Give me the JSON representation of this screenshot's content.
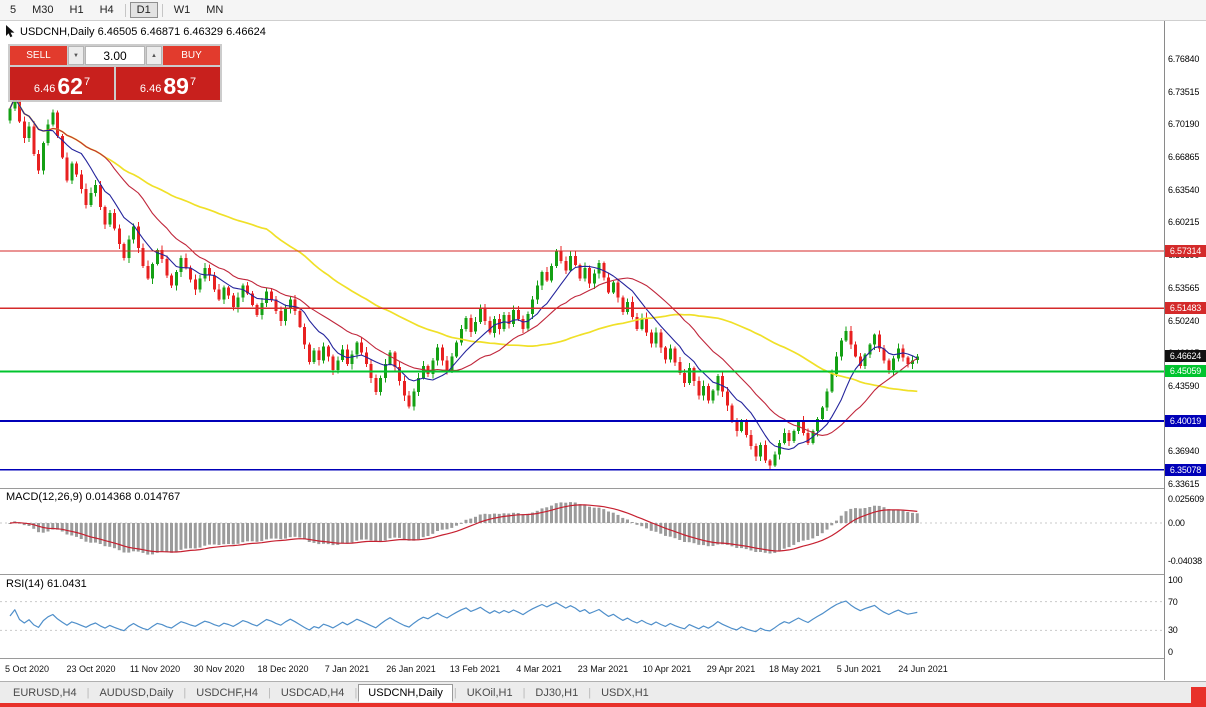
{
  "colors": {
    "up": "#14a014",
    "down": "#e82020",
    "ma_fast": "#24249c",
    "ma_mid": "#c0273c",
    "ma_slow": "#f0e028",
    "macd_hist": "#9b9b9b",
    "macd_signal": "#c62030",
    "rsi_line": "#4f8fca",
    "level_red": "#d42a2a",
    "level_green": "#00c42e",
    "level_blue": "#0000b8",
    "current_badge": "#111111"
  },
  "toolbar": {
    "timeframes": [
      {
        "label": "5",
        "active": false
      },
      {
        "label": "M30",
        "active": false
      },
      {
        "label": "H1",
        "active": false
      },
      {
        "label": "H4",
        "active": false
      },
      {
        "label": "D1",
        "active": true
      },
      {
        "label": "W1",
        "active": false
      },
      {
        "label": "MN",
        "active": false
      }
    ]
  },
  "chart_header": {
    "symbol_info": "USDCNH,Daily 6.46505 6.46871 6.46329 6.46624"
  },
  "trade_panel": {
    "sell_label": "SELL",
    "buy_label": "BUY",
    "volume": "3.00",
    "spin_down": "▼",
    "spin_up": "▲",
    "sell_price": {
      "prefix": "6.46",
      "big": "62",
      "sup": "7"
    },
    "buy_price": {
      "prefix": "6.46",
      "big": "89",
      "sup": "7"
    }
  },
  "levels": [
    {
      "value": "6.57314",
      "price": 6.57314,
      "color": "red"
    },
    {
      "value": "6.51483",
      "price": 6.51483,
      "color": "red"
    },
    {
      "value": "6.45059",
      "price": 6.45059,
      "color": "green"
    },
    {
      "value": "6.40019",
      "price": 6.40019,
      "color": "blue"
    },
    {
      "value": "6.35078",
      "price": 6.35078,
      "color": "blue"
    }
  ],
  "current_price": {
    "value": "6.46624",
    "price": 6.46624
  },
  "price_axis": {
    "ticks": [
      "6.76840",
      "6.73515",
      "6.70190",
      "6.66865",
      "6.63540",
      "6.60215",
      "6.56890",
      "6.53565",
      "6.50240",
      "6.46915",
      "6.43590",
      "6.40265",
      "6.36940",
      "6.33615"
    ]
  },
  "macd_panel": {
    "label": "MACD(12,26,9) 0.014368 0.014767",
    "axis": [
      "0.025609",
      "0.00",
      "-0.04038"
    ]
  },
  "rsi_panel": {
    "label": "RSI(14) 61.0431",
    "axis": [
      "100",
      "70",
      "30",
      "0"
    ]
  },
  "time_axis": {
    "labels": [
      "5 Oct 2020",
      "23 Oct 2020",
      "11 Nov 2020",
      "30 Nov 2020",
      "18 Dec 2020",
      "7 Jan 2021",
      "26 Jan 2021",
      "13 Feb 2021",
      "4 Mar 2021",
      "23 Mar 2021",
      "10 Apr 2021",
      "29 Apr 2021",
      "18 May 2021",
      "5 Jun 2021",
      "24 Jun 2021"
    ]
  },
  "tabs": {
    "separator": "|",
    "items": [
      {
        "label": "EURUSD,H4",
        "active": false
      },
      {
        "label": "AUDUSD,Daily",
        "active": false
      },
      {
        "label": "USDCHF,H4",
        "active": false
      },
      {
        "label": "USDCAD,H4",
        "active": false
      },
      {
        "label": "USDCNH,Daily",
        "active": true
      },
      {
        "label": "UKOil,H1",
        "active": false
      },
      {
        "label": "DJ30,H1",
        "active": false
      },
      {
        "label": "USDX,H1",
        "active": false
      }
    ]
  },
  "chart_data": {
    "type": "candlestick",
    "symbol": "USDCNH",
    "timeframe": "Daily",
    "ohlc_display": {
      "open": "6.46505",
      "high": "6.46871",
      "low": "6.46329",
      "close": "6.46624"
    },
    "x_labels": [
      "5 Oct 2020",
      "23 Oct 2020",
      "11 Nov 2020",
      "30 Nov 2020",
      "18 Dec 2020",
      "7 Jan 2021",
      "26 Jan 2021",
      "13 Feb 2021",
      "4 Mar 2021",
      "23 Mar 2021",
      "10 Apr 2021",
      "29 Apr 2021",
      "18 May 2021",
      "5 Jun 2021",
      "24 Jun 2021"
    ],
    "y_range": [
      6.33615,
      6.7684
    ],
    "horizontal_levels": [
      6.57314,
      6.51483,
      6.45059,
      6.40019,
      6.35078
    ],
    "moving_averages": [
      {
        "name": "fast",
        "period": 9
      },
      {
        "name": "medium",
        "period": 21
      },
      {
        "name": "slow",
        "period": 55
      }
    ],
    "indicators": [
      {
        "name": "MACD",
        "params": "12,26,9",
        "values": [
          0.014368,
          0.014767
        ],
        "y_axis": [
          0.025609,
          0.0,
          -0.04038
        ]
      },
      {
        "name": "RSI",
        "params": "14",
        "value": 61.0431,
        "y_axis": [
          0,
          30,
          70,
          100
        ]
      }
    ],
    "closes": [
      6.718,
      6.74,
      6.705,
      6.688,
      6.7,
      6.672,
      6.655,
      6.683,
      6.702,
      6.714,
      6.69,
      6.668,
      6.645,
      6.662,
      6.651,
      6.636,
      6.62,
      6.632,
      6.64,
      6.618,
      6.6,
      6.612,
      6.596,
      6.58,
      6.566,
      6.585,
      6.598,
      6.576,
      6.558,
      6.545,
      6.56,
      6.574,
      6.565,
      6.548,
      6.538,
      6.552,
      6.566,
      6.556,
      6.544,
      6.534,
      6.545,
      6.556,
      6.548,
      6.534,
      6.524,
      6.536,
      6.528,
      6.516,
      6.526,
      6.538,
      6.53,
      6.518,
      6.508,
      6.52,
      6.532,
      6.524,
      6.512,
      6.502,
      6.514,
      6.524,
      6.512,
      6.496,
      6.478,
      6.46,
      6.472,
      6.462,
      6.476,
      6.466,
      6.452,
      6.462,
      6.473,
      6.458,
      6.468,
      6.48,
      6.47,
      6.458,
      6.444,
      6.43,
      6.444,
      6.458,
      6.47,
      6.455,
      6.441,
      6.426,
      6.415,
      6.43,
      6.444,
      6.456,
      6.448,
      6.462,
      6.475,
      6.462,
      6.452,
      6.466,
      6.48,
      6.494,
      6.505,
      6.491,
      6.501,
      6.515,
      6.502,
      6.49,
      6.504,
      6.494,
      6.508,
      6.499,
      6.513,
      6.504,
      6.494,
      6.509,
      6.524,
      6.538,
      6.552,
      6.543,
      6.558,
      6.573,
      6.563,
      6.553,
      6.568,
      6.559,
      6.545,
      6.556,
      6.54,
      6.55,
      6.561,
      6.546,
      6.531,
      6.541,
      6.526,
      6.511,
      6.521,
      6.506,
      6.494,
      6.505,
      6.49,
      6.479,
      6.49,
      6.475,
      6.463,
      6.474,
      6.46,
      6.449,
      6.439,
      6.454,
      6.441,
      6.426,
      6.436,
      6.421,
      6.431,
      6.446,
      6.43,
      6.416,
      6.401,
      6.39,
      6.401,
      6.386,
      6.375,
      6.364,
      6.376,
      6.36,
      6.355,
      6.366,
      6.378,
      6.388,
      6.38,
      6.39,
      6.4,
      6.388,
      6.378,
      6.39,
      6.402,
      6.414,
      6.43,
      6.448,
      6.466,
      6.482,
      6.492,
      6.478,
      6.466,
      6.456,
      6.468,
      6.478,
      6.488,
      6.474,
      6.462,
      6.452,
      6.464,
      6.474,
      6.465,
      6.458,
      6.462,
      6.466
    ]
  }
}
